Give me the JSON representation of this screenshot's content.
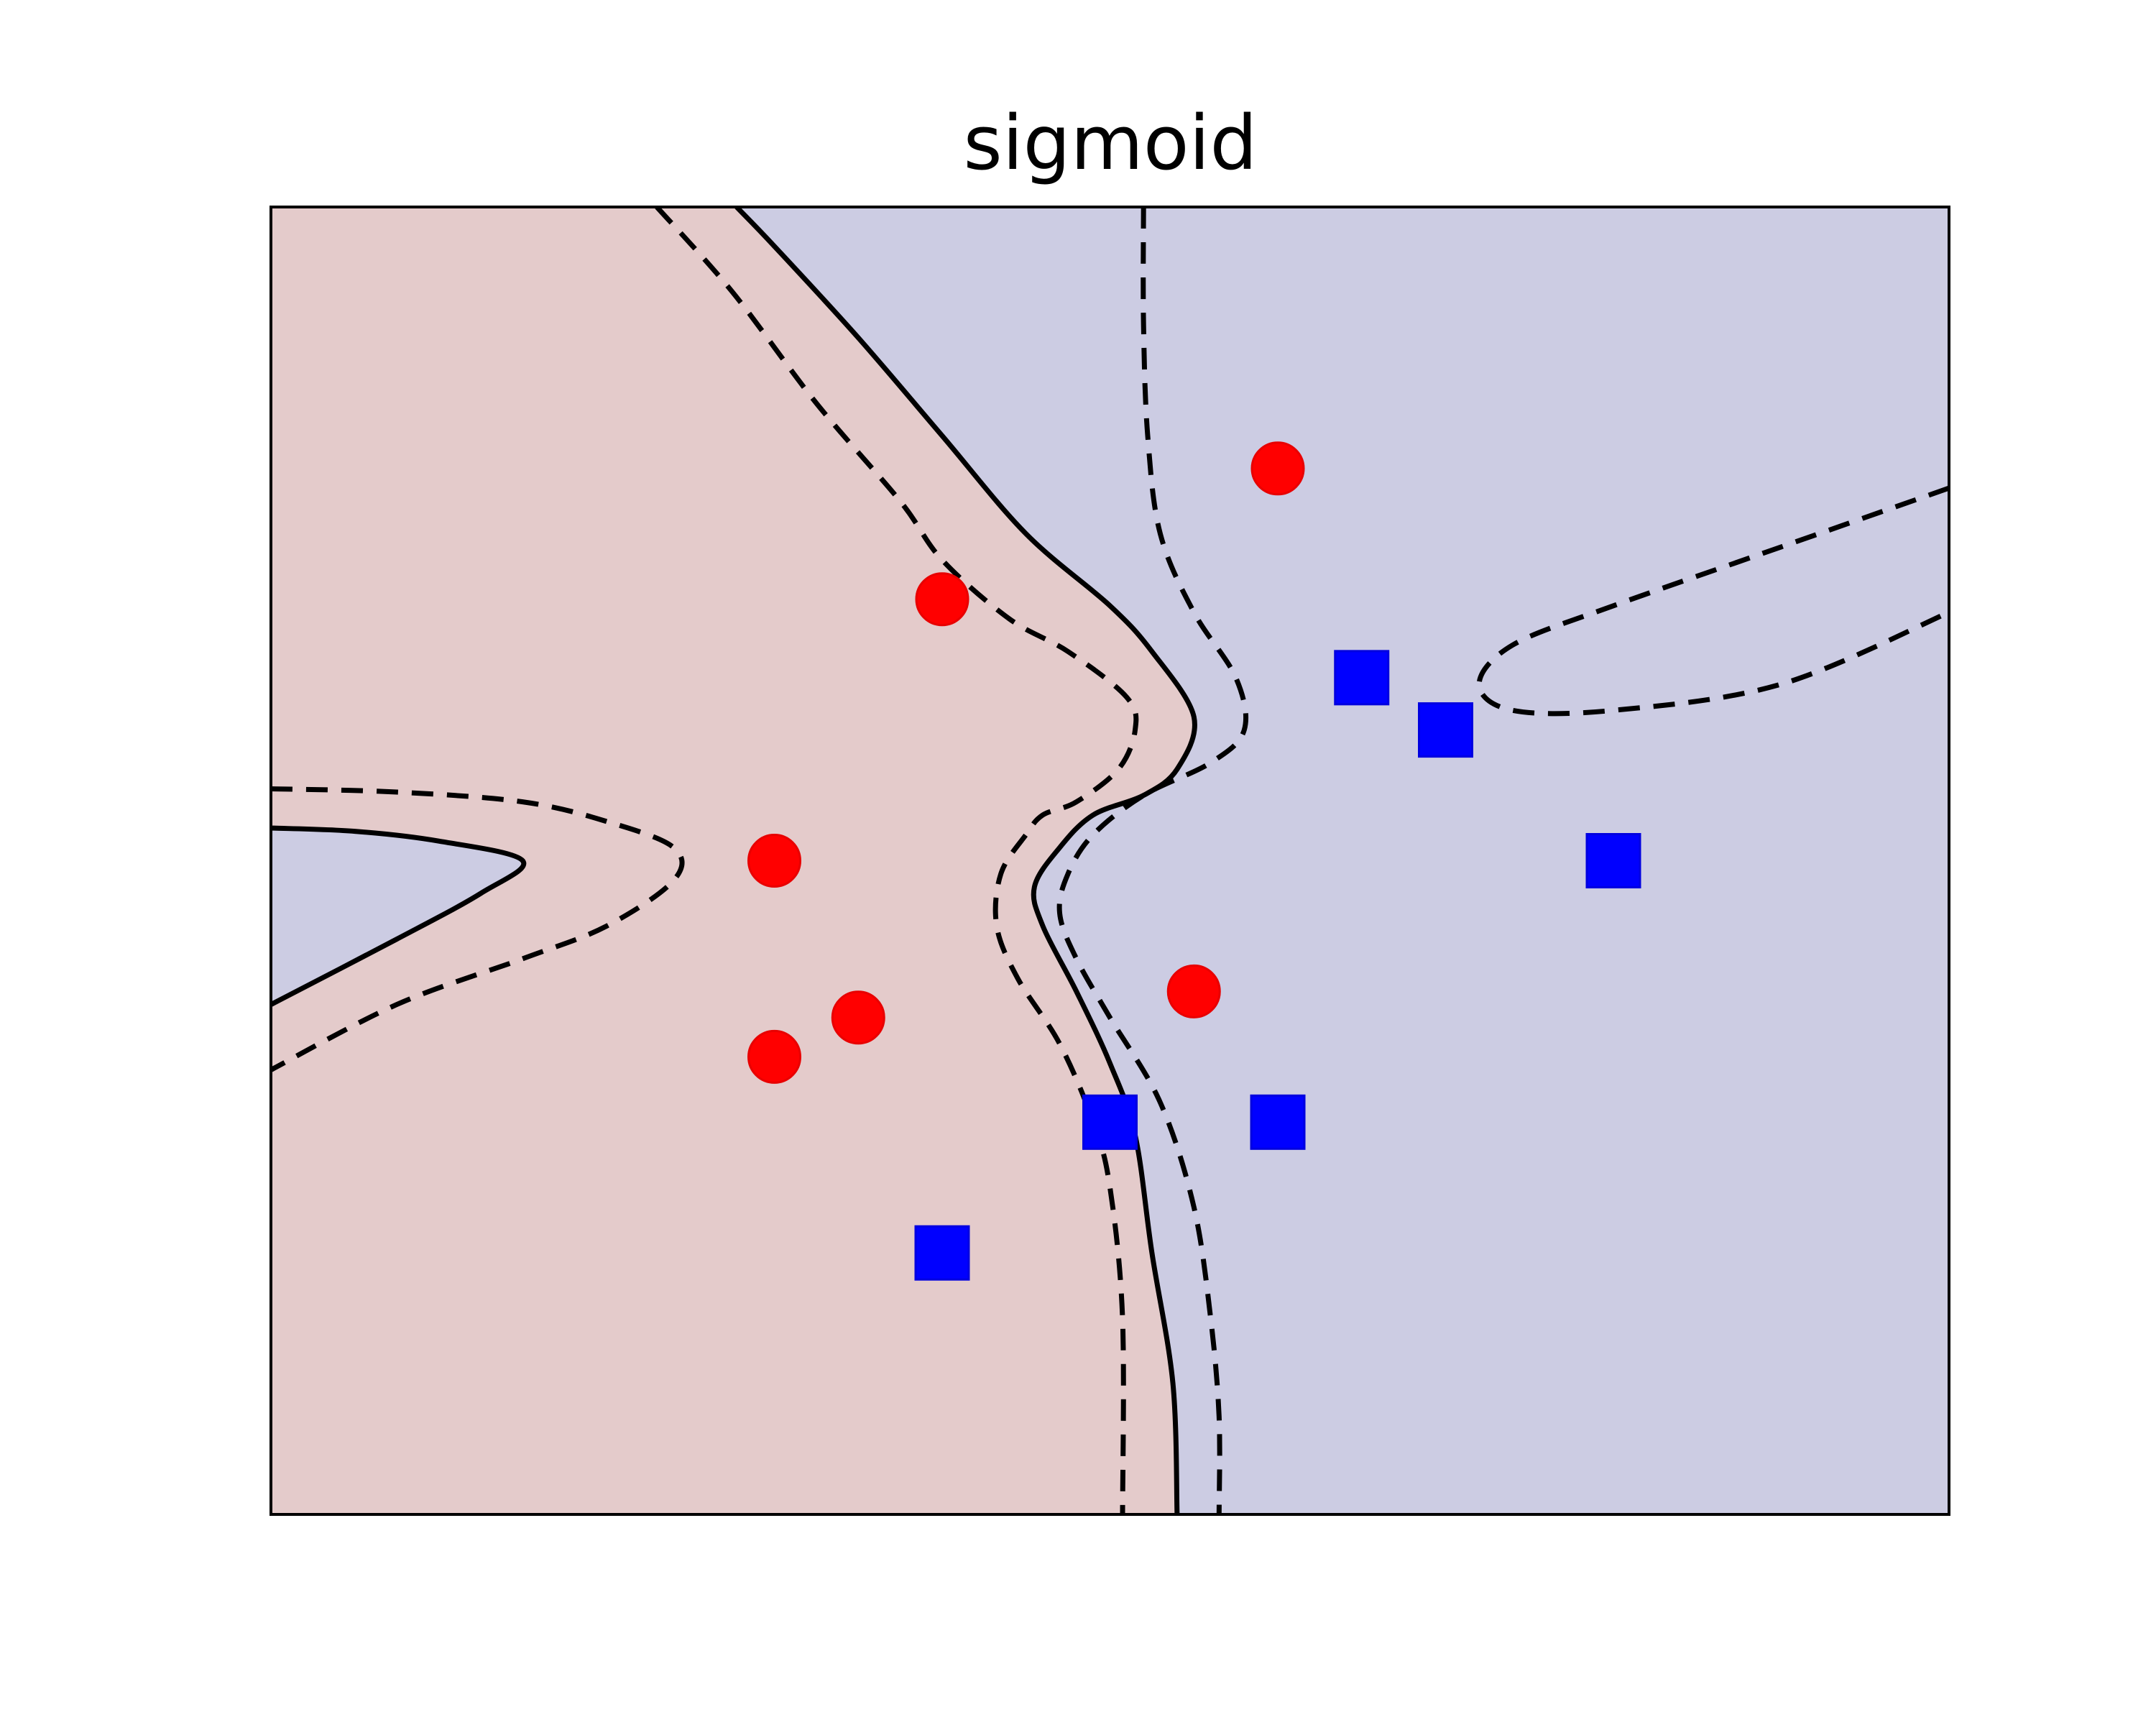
{
  "chart_data": {
    "type": "scatter",
    "title": "sigmoid",
    "xlabel": "",
    "ylabel": "",
    "xlim": [
      -1,
      1
    ],
    "ylim": [
      -1,
      1
    ],
    "grid": false,
    "axis_ticks": false,
    "region_colors": {
      "class_circle": "#e4cbcb",
      "class_square": "#cccce3"
    },
    "series": [
      {
        "marker": "circle",
        "color": "#ff0000",
        "points": [
          {
            "x": 0.2,
            "y": 0.6
          },
          {
            "x": -0.2,
            "y": 0.4
          },
          {
            "x": -0.4,
            "y": 0.0
          },
          {
            "x": -0.3,
            "y": -0.24
          },
          {
            "x": -0.4,
            "y": -0.3
          },
          {
            "x": 0.1,
            "y": -0.2
          }
        ]
      },
      {
        "marker": "square",
        "color": "#0000ff",
        "points": [
          {
            "x": 0.3,
            "y": 0.28
          },
          {
            "x": 0.4,
            "y": 0.2
          },
          {
            "x": 0.6,
            "y": 0.0
          },
          {
            "x": 0.0,
            "y": -0.4
          },
          {
            "x": 0.2,
            "y": -0.4
          },
          {
            "x": -0.2,
            "y": -0.6
          }
        ]
      }
    ],
    "decision_boundary": {
      "color": "#000000",
      "solid": [
        [
          [
            -0.445,
            1.0
          ],
          [
            -0.4,
            0.94
          ],
          [
            -0.3,
            0.8
          ],
          [
            -0.2,
            0.65
          ],
          [
            -0.1,
            0.5
          ],
          [
            0.0,
            0.39
          ],
          [
            0.05,
            0.32
          ],
          [
            0.1,
            0.22
          ],
          [
            0.08,
            0.14
          ],
          [
            0.04,
            0.1
          ],
          [
            -0.02,
            0.07
          ],
          [
            -0.06,
            0.02
          ],
          [
            -0.09,
            -0.04
          ],
          [
            -0.08,
            -0.1
          ],
          [
            -0.04,
            -0.2
          ],
          [
            0.0,
            -0.31
          ],
          [
            0.03,
            -0.42
          ],
          [
            0.05,
            -0.6
          ],
          [
            0.075,
            -0.8
          ],
          [
            0.08,
            -1.0
          ]
        ],
        [
          [
            -1.0,
            0.05
          ],
          [
            -0.9,
            0.045
          ],
          [
            -0.8,
            0.03
          ],
          [
            -0.7,
            0.0
          ],
          [
            -0.75,
            -0.05
          ],
          [
            -0.85,
            -0.12
          ],
          [
            -1.0,
            -0.22
          ]
        ]
      ],
      "dashed": [
        [
          [
            -0.54,
            1.0
          ],
          [
            -0.45,
            0.87
          ],
          [
            -0.35,
            0.7
          ],
          [
            -0.25,
            0.55
          ],
          [
            -0.2,
            0.46
          ],
          [
            -0.12,
            0.37
          ],
          [
            -0.05,
            0.32
          ],
          [
            0.02,
            0.25
          ],
          [
            0.03,
            0.2
          ],
          [
            0.01,
            0.14
          ],
          [
            -0.04,
            0.09
          ],
          [
            -0.08,
            0.07
          ],
          [
            -0.1,
            0.04
          ],
          [
            -0.13,
            -0.02
          ],
          [
            -0.135,
            -0.1
          ],
          [
            -0.11,
            -0.18
          ],
          [
            -0.06,
            -0.28
          ],
          [
            -0.02,
            -0.4
          ],
          [
            0.0,
            -0.5
          ],
          [
            0.015,
            -0.7
          ],
          [
            0.015,
            -1.0
          ]
        ],
        [
          [
            0.04,
            1.0
          ],
          [
            0.04,
            0.82
          ],
          [
            0.045,
            0.65
          ],
          [
            0.06,
            0.5
          ],
          [
            0.1,
            0.38
          ],
          [
            0.15,
            0.28
          ],
          [
            0.16,
            0.2
          ],
          [
            0.12,
            0.15
          ],
          [
            0.04,
            0.1
          ],
          [
            -0.02,
            0.04
          ],
          [
            -0.05,
            -0.02
          ],
          [
            -0.06,
            -0.08
          ],
          [
            -0.04,
            -0.15
          ],
          [
            0.0,
            -0.24
          ],
          [
            0.06,
            -0.37
          ],
          [
            0.1,
            -0.53
          ],
          [
            0.12,
            -0.7
          ],
          [
            0.13,
            -0.85
          ],
          [
            0.13,
            -1.0
          ]
        ],
        [
          [
            -1.0,
            0.11
          ],
          [
            -0.85,
            0.105
          ],
          [
            -0.7,
            0.09
          ],
          [
            -0.6,
            0.06
          ],
          [
            -0.52,
            0.02
          ],
          [
            -0.52,
            -0.03
          ],
          [
            -0.6,
            -0.1
          ],
          [
            -0.7,
            -0.15
          ],
          [
            -0.85,
            -0.22
          ],
          [
            -1.0,
            -0.32
          ]
        ],
        [
          [
            1.0,
            0.57
          ],
          [
            0.8,
            0.48
          ],
          [
            0.6,
            0.39
          ],
          [
            0.48,
            0.33
          ],
          [
            0.44,
            0.27
          ],
          [
            0.48,
            0.23
          ],
          [
            0.6,
            0.23
          ],
          [
            0.8,
            0.27
          ],
          [
            1.0,
            0.38
          ]
        ]
      ]
    }
  }
}
